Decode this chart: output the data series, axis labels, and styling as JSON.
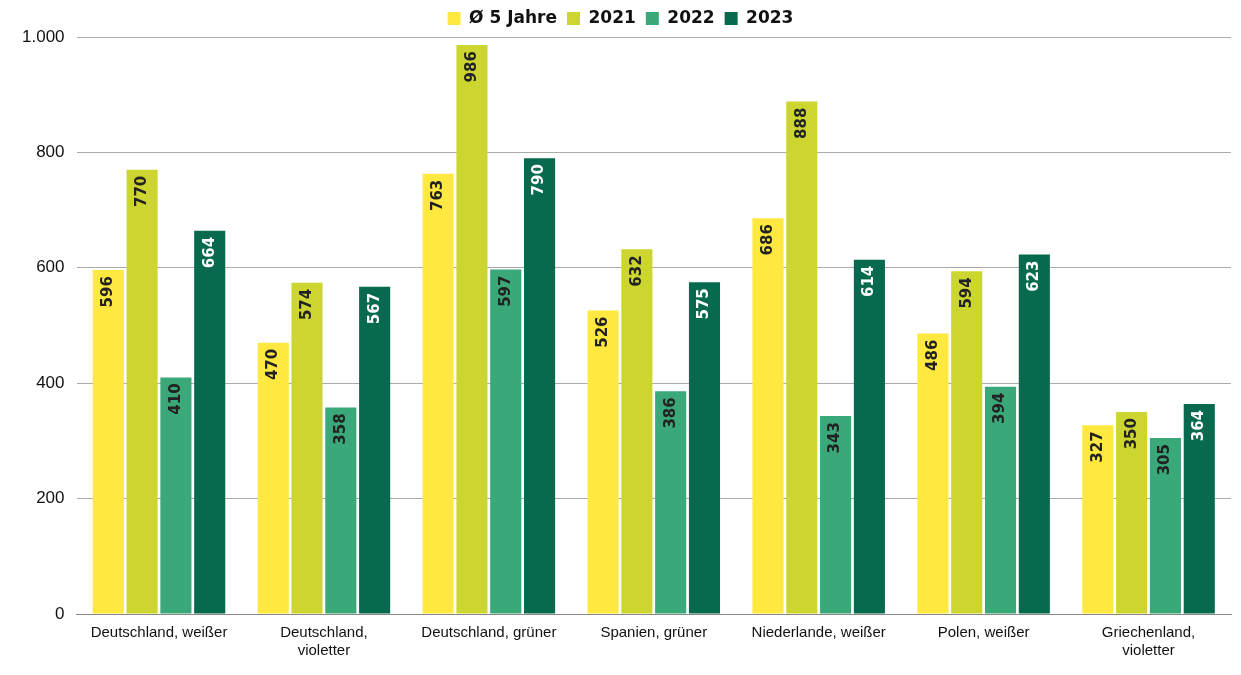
{
  "chart_data": {
    "type": "bar",
    "categories": [
      "Deutschland, weißer",
      "Deutschland, violetter",
      "Deutschland, grüner",
      "Spanien, grüner",
      "Niederlande, weißer",
      "Polen, weißer",
      "Griechenland, violetter"
    ],
    "series": [
      {
        "name": "Ø 5 Jahre",
        "color": "#ffe83f",
        "values": [
          596,
          470,
          763,
          526,
          686,
          486,
          327
        ]
      },
      {
        "name": "2021",
        "color": "#cdd630",
        "values": [
          770,
          574,
          986,
          632,
          888,
          594,
          350
        ]
      },
      {
        "name": "2022",
        "color": "#3aa878",
        "values": [
          410,
          358,
          597,
          386,
          343,
          394,
          305
        ]
      },
      {
        "name": "2023",
        "color": "#076a4e",
        "values": [
          664,
          567,
          790,
          575,
          614,
          623,
          364
        ]
      }
    ],
    "ylim": [
      0,
      1000
    ],
    "yticks": [
      0,
      200,
      400,
      600,
      800,
      {
        "value": 1000,
        "label": "1.000"
      }
    ],
    "grid": "y",
    "legend": "top",
    "data_labels": true
  }
}
